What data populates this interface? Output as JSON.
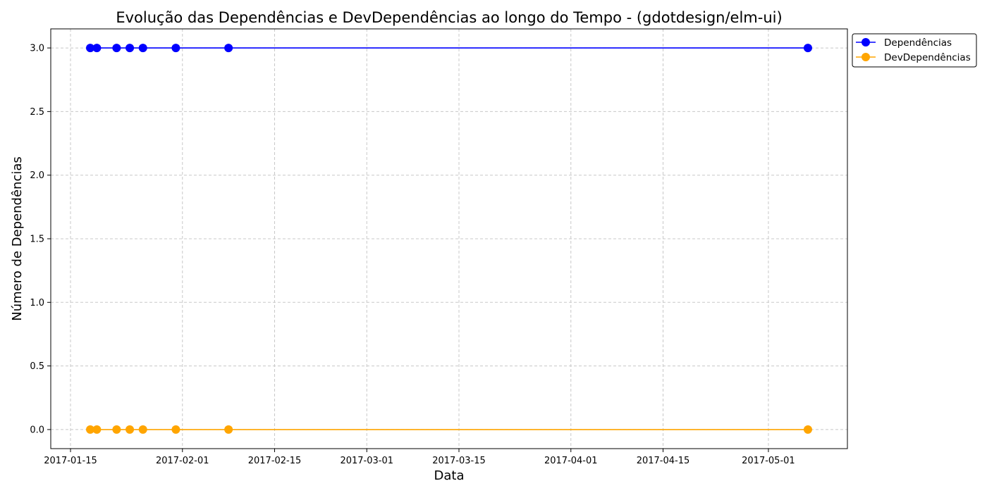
{
  "chart_data": {
    "type": "line",
    "title": "Evolução das Dependências e DevDependências ao longo do Tempo - (gdotdesign/elm-ui)",
    "xlabel": "Data",
    "ylabel": "Número de Dependências",
    "x_tick_labels": [
      "2017-01-15",
      "2017-02-01",
      "2017-02-15",
      "2017-03-01",
      "2017-03-15",
      "2017-04-01",
      "2017-04-15",
      "2017-05-01"
    ],
    "y_tick_labels": [
      "0.0",
      "0.5",
      "1.0",
      "1.5",
      "2.0",
      "2.5",
      "3.0"
    ],
    "ylim": [
      -0.15,
      3.15
    ],
    "xlim": [
      "2017-01-12",
      "2017-05-13"
    ],
    "grid": true,
    "legend_position": "outside-top-right",
    "x": [
      "2017-01-18",
      "2017-01-19",
      "2017-01-22",
      "2017-01-24",
      "2017-01-26",
      "2017-01-31",
      "2017-02-08",
      "2017-05-07"
    ],
    "series": [
      {
        "name": "Dependências",
        "color": "#0000ff",
        "values": [
          3,
          3,
          3,
          3,
          3,
          3,
          3,
          3
        ]
      },
      {
        "name": "DevDependências",
        "color": "#ffa500",
        "values": [
          0,
          0,
          0,
          0,
          0,
          0,
          0,
          0
        ]
      }
    ]
  }
}
